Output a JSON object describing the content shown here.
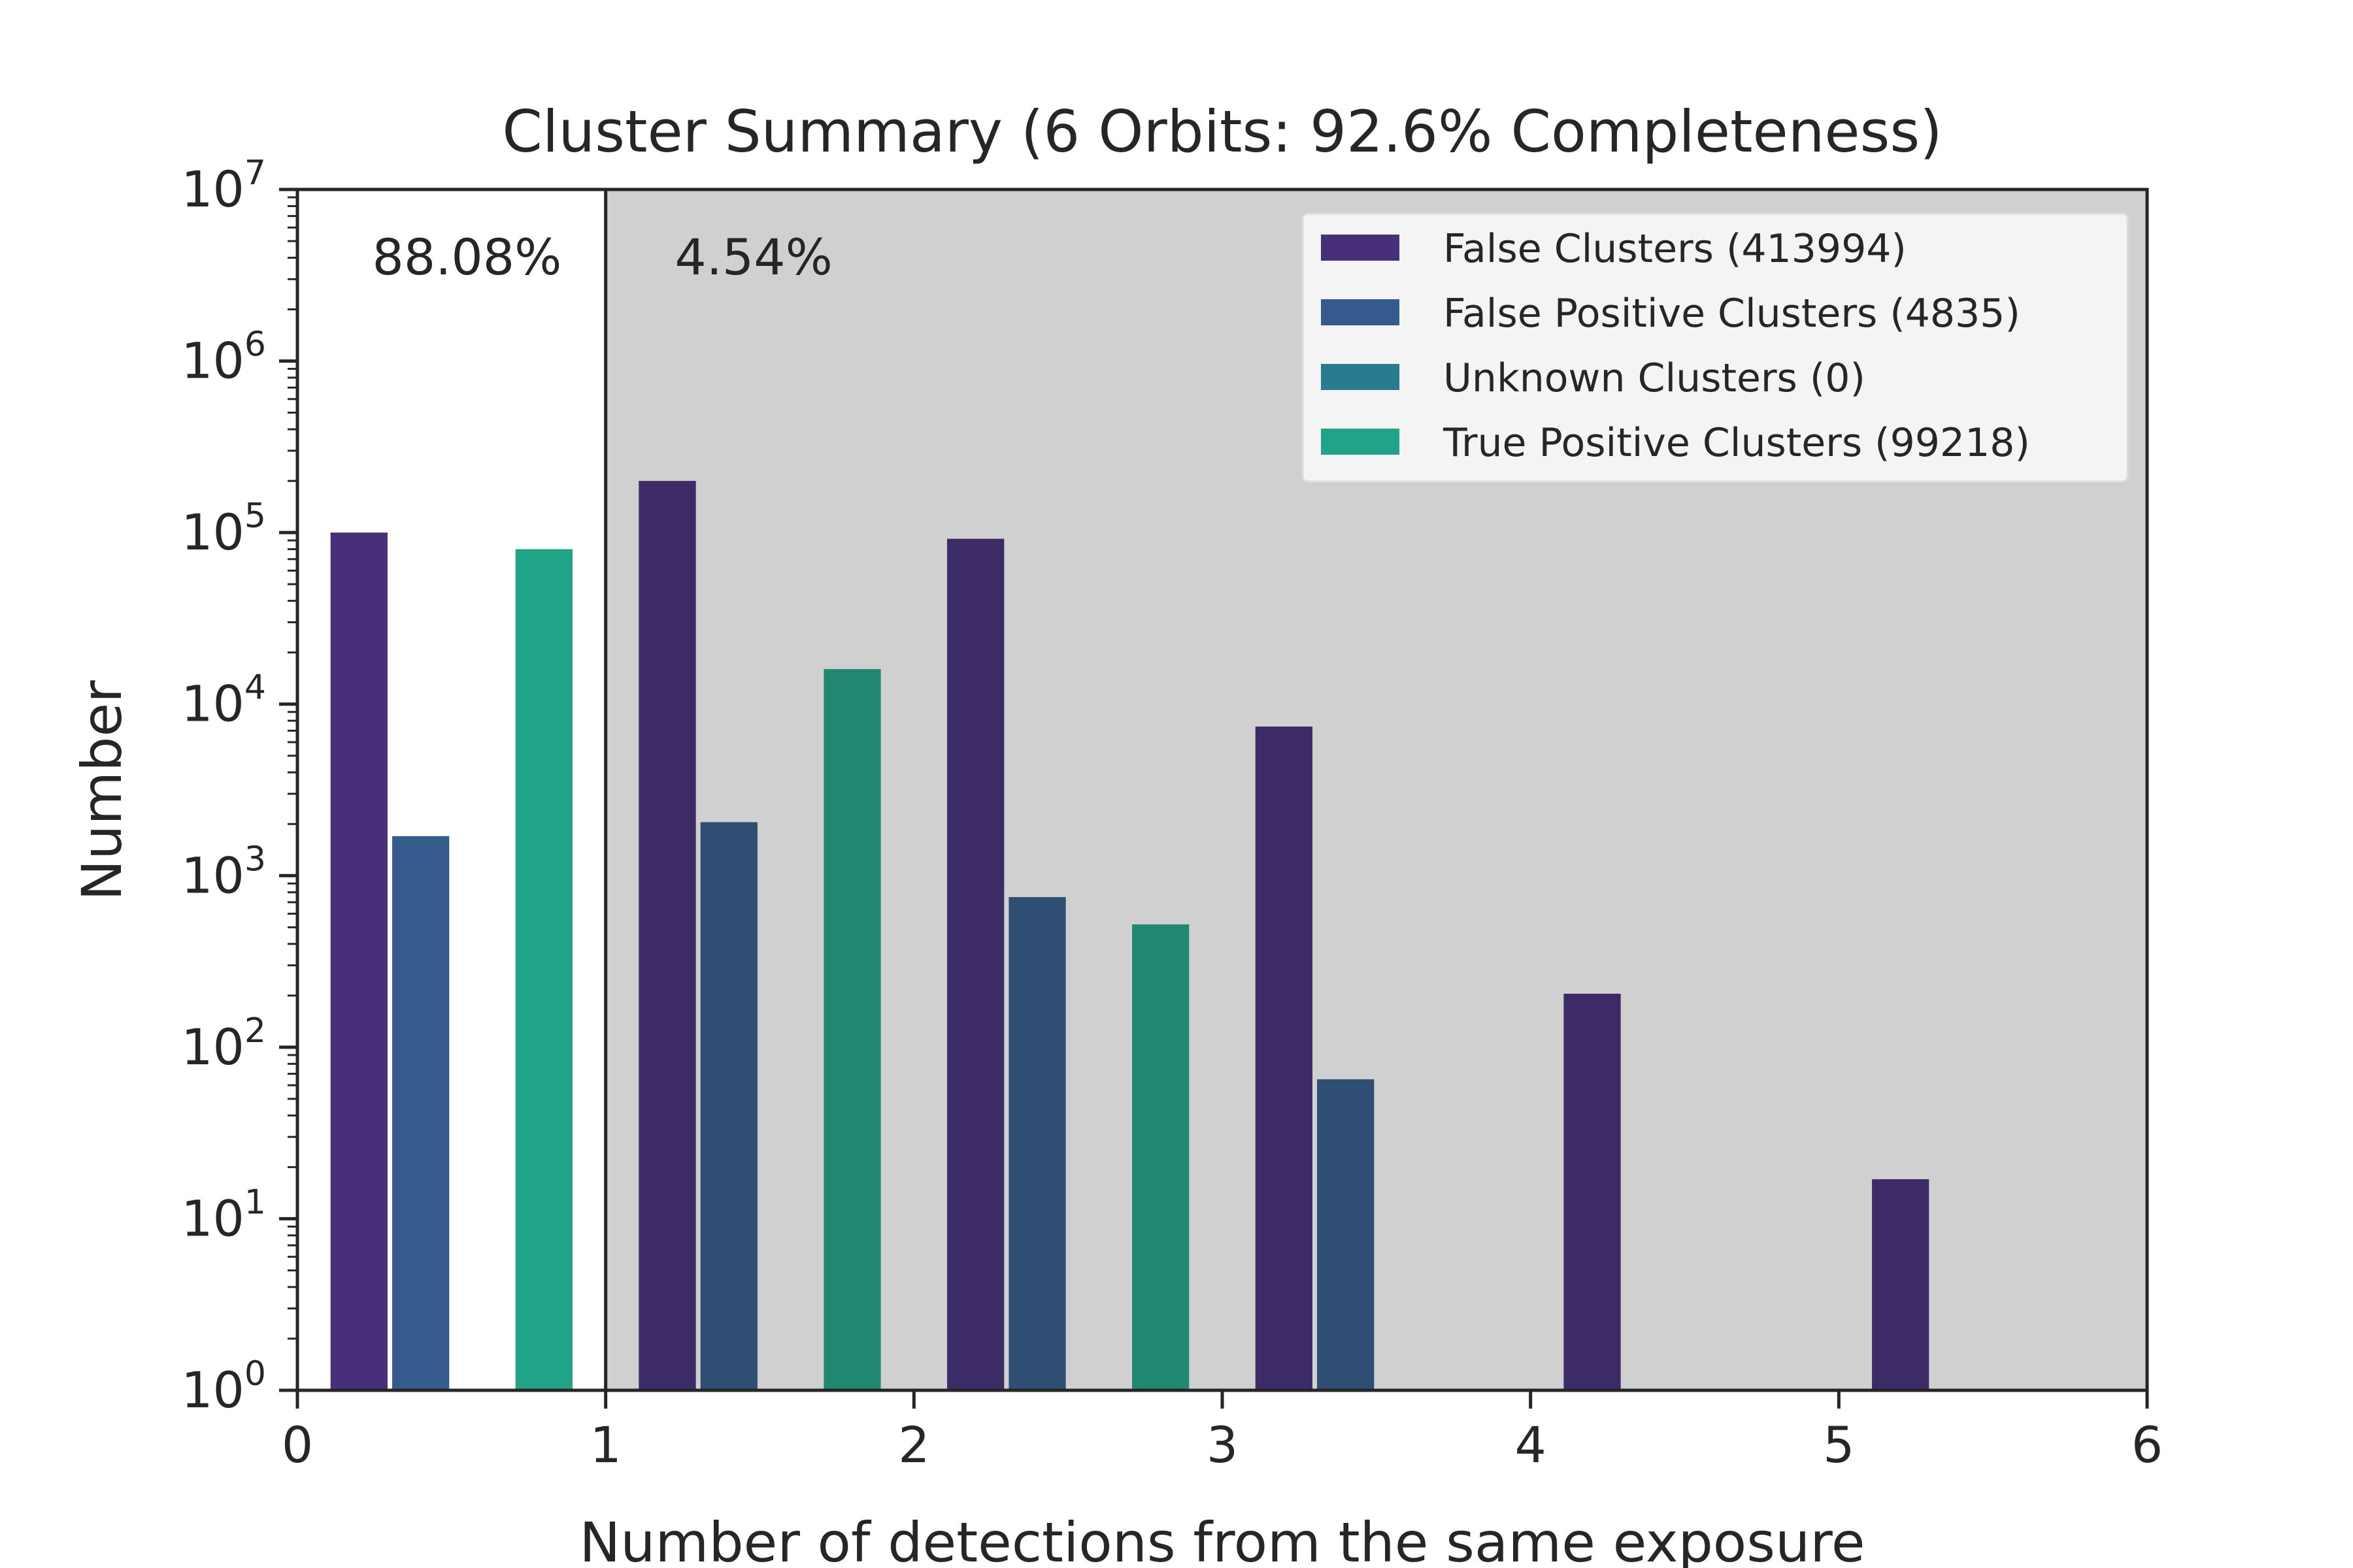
{
  "chart_data": {
    "type": "bar",
    "title": "Cluster Summary (6 Orbits: 92.6% Completeness)",
    "xlabel": "Number of detections from the same exposure",
    "ylabel": "Number",
    "xlim": [
      0,
      6
    ],
    "ylim": [
      1,
      10000000
    ],
    "yscale": "log",
    "grid": false,
    "legend_position": "top-right",
    "x_ticks": [
      "0",
      "1",
      "2",
      "3",
      "4",
      "5",
      "6"
    ],
    "y_ticks": [
      {
        "base": "10",
        "exp": "0"
      },
      {
        "base": "10",
        "exp": "1"
      },
      {
        "base": "10",
        "exp": "2"
      },
      {
        "base": "10",
        "exp": "3"
      },
      {
        "base": "10",
        "exp": "4"
      },
      {
        "base": "10",
        "exp": "5"
      },
      {
        "base": "10",
        "exp": "6"
      },
      {
        "base": "10",
        "exp": "7"
      }
    ],
    "shaded_region": {
      "from": 1,
      "to": 6,
      "color": "#d0d0d0"
    },
    "divider_x": 1,
    "annotations": [
      {
        "text": "88.08%",
        "x": 0.55
      },
      {
        "text": "4.54%",
        "x": 1.48
      }
    ],
    "categories": [
      "0",
      "1",
      "2",
      "3",
      "4",
      "5"
    ],
    "series": [
      {
        "name": "False Clusters (413994)",
        "color": "#482f7a",
        "color_shaded": "#3c2b66",
        "offset": 0.2,
        "values": [
          100000,
          200000,
          92000,
          7400,
          205,
          17
        ]
      },
      {
        "name": "False Positive Clusters (4835)",
        "color": "#355b8c",
        "color_shaded": "#2f4e73",
        "offset": 0.4,
        "values": [
          1700,
          2050,
          750,
          65,
          null,
          null
        ]
      },
      {
        "name": "Unknown Clusters (0)",
        "color": "#287c8e",
        "color_shaded": "#287c8e",
        "offset": 0.6,
        "values": [
          null,
          null,
          null,
          null,
          null,
          null
        ]
      },
      {
        "name": "True Positive Clusters (99218)",
        "color": "#20a386",
        "color_shaded": "#208770",
        "offset": 0.8,
        "values": [
          80000,
          16000,
          520,
          null,
          null,
          null
        ]
      }
    ]
  }
}
